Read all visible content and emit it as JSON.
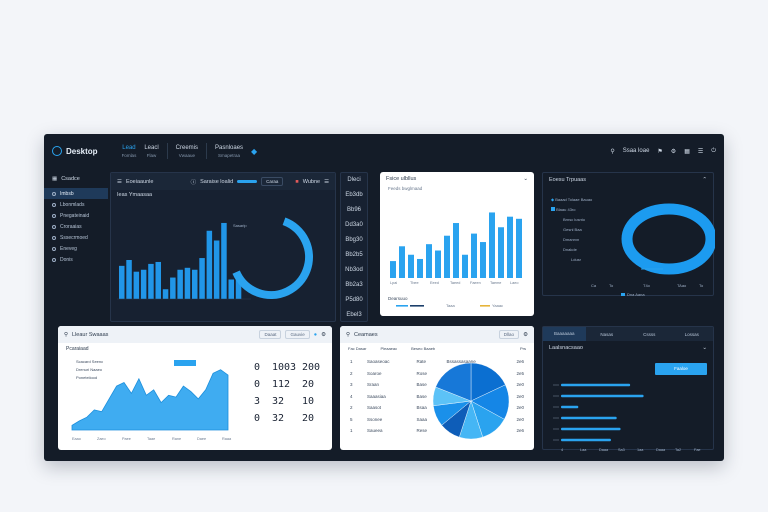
{
  "app": {
    "brand": "Desktop"
  },
  "nav": [
    {
      "label": "Lead",
      "sub": "Fomlas"
    },
    {
      "label": "Leacl",
      "sub": "Flaw"
    },
    {
      "label": "Creemis",
      "sub": "Vwaaue"
    },
    {
      "label": "Pasnloaes",
      "sub": "Smapetraa"
    }
  ],
  "topright": {
    "label": "Ssaa loae"
  },
  "sidebar": {
    "title": "Csadce",
    "items": [
      "Imbsb",
      "Lbonmlads",
      "Pnegateinaid",
      "Croraaias",
      "Sssecrmoed",
      "Eneveg",
      "Donis"
    ]
  },
  "panel_main": {
    "title": "Eoeiaaunle",
    "badge": "Saraise loalid",
    "tab": "Caraa",
    "right": "Wubne",
    "subtitle": "Ieas Ymaasaa",
    "note": "Sasarlp"
  },
  "numcol": {
    "header": "Dleci",
    "values": [
      "Eb3db",
      "Bb96",
      "Dd3a0",
      "Bbg30",
      "Bb2b5",
      "Nb3od",
      "Bb2a3",
      "P5d80",
      "Ebel3"
    ]
  },
  "panel_bars": {
    "title": "Fsice ulbllus",
    "subtitle": "Feeds bwglmaad",
    "xlabels": [
      "Lpai",
      "Tbee",
      "Eeed",
      "Taeed",
      "Faeen",
      "Taeme",
      "Laeo"
    ],
    "legend_title": "Dearsuuo",
    "legend": [
      "Taaa",
      "Yaaac"
    ]
  },
  "panel_donut": {
    "title": "Eoesu Trpuaas",
    "legend": [
      "Baaad Tolaae Bauao",
      "Blaau 43ro",
      "Brnsc lusnto",
      "Gesnl Baa",
      "Dmanrxn",
      "Dnakde",
      "Ldusr"
    ],
    "footer": [
      "Ca",
      "To",
      "T4o",
      "TAao",
      "To"
    ],
    "footer_note": "Dna Aana"
  },
  "panel_area": {
    "title": "Lleaur Swaaas",
    "select1": "Daaat",
    "select2": "Gauvie",
    "subtitle": "Pcaraiaad",
    "legend": [
      "Scacard Seenc",
      "Drenuri Naaeo",
      "Poneteiiood"
    ],
    "xlabels": [
      "Eaao",
      "Zaeo",
      "Paee",
      "Taae",
      "Rane",
      "Daee",
      "Raaa"
    ],
    "digits": [
      "0",
      "1003",
      "200",
      "0",
      "112",
      "20",
      "3",
      "32",
      "10",
      "0",
      "32",
      "20"
    ]
  },
  "panel_pie": {
    "title": "Ceamaes",
    "select": "Dllao",
    "cols": [
      "Fac Dasar",
      "Pleaaeac",
      "Beseo Baaeb",
      "Prs"
    ],
    "rows": [
      [
        "1",
        "Saoaseoac",
        "Rate",
        "Bssassasaane",
        "2e6"
      ],
      [
        "2",
        "Soaroe",
        "Rose",
        "",
        "2e5"
      ],
      [
        "3",
        "Sraan",
        "Base",
        "",
        "2e0"
      ],
      [
        "4",
        "Saaasiaa",
        "Base",
        "",
        "2e0"
      ],
      [
        "2",
        "Saasot",
        "Bsaa",
        "",
        "2e0"
      ],
      [
        "5",
        "Ssonee",
        "Saaa",
        "",
        "2e0"
      ],
      [
        "1",
        "Saueea",
        "Rese",
        "",
        "2e6"
      ]
    ]
  },
  "panel_hbar": {
    "tabs": [
      "Baaaaaaa",
      "Nasas",
      "Cssss",
      "Lossas"
    ],
    "title": "Laalsnacsaao",
    "button": "Faaloe",
    "values": [
      0.72,
      0.86,
      0.18,
      0.58,
      0.62,
      0.52
    ],
    "xlabels": [
      "4",
      "Laa",
      "Daaa",
      "Sa3",
      "1aa",
      "Daaa",
      "Ta2",
      "Fae"
    ]
  },
  "colors": {
    "accent": "#2aa3ef",
    "bg": "#141c28",
    "panel": "#172131"
  },
  "chart_data": [
    {
      "type": "bar",
      "values": [
        34,
        40,
        28,
        30,
        36,
        38,
        10,
        22,
        30,
        32,
        30,
        42,
        70,
        60,
        78,
        20,
        20
      ]
    },
    {
      "type": "bar",
      "values": [
        16,
        30,
        22,
        18,
        32,
        26,
        40,
        52,
        22,
        42,
        34,
        62,
        48,
        58,
        56
      ]
    },
    {
      "type": "area",
      "values": [
        5,
        10,
        14,
        22,
        20,
        34,
        48,
        52,
        40,
        56,
        38,
        44,
        30,
        38,
        36,
        48,
        42,
        34,
        44,
        62,
        66,
        60
      ]
    },
    {
      "type": "pie",
      "values": [
        18,
        15,
        12,
        10,
        9,
        9,
        8,
        19
      ]
    }
  ]
}
